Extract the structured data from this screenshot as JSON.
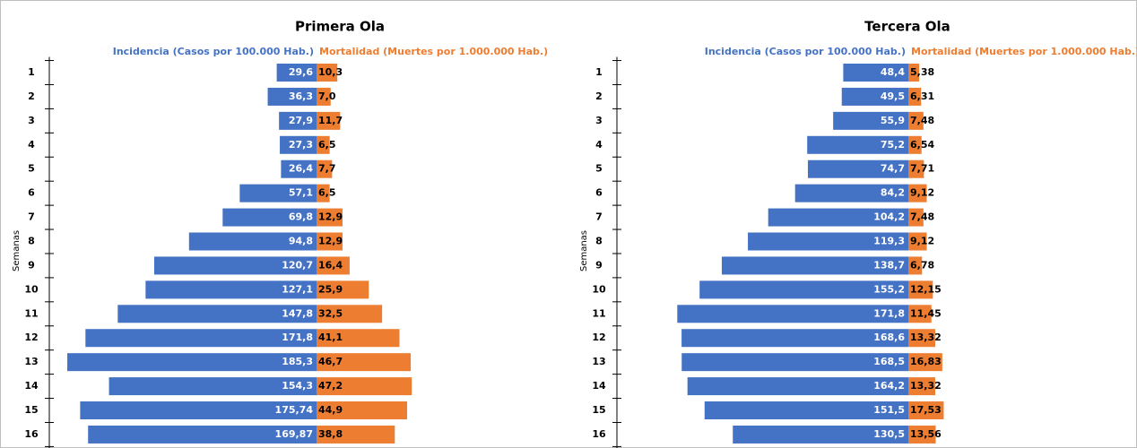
{
  "chart_data": [
    {
      "type": "butterfly",
      "title": "Primera Ola",
      "y_label": "Semanas",
      "categories": [
        "1",
        "2",
        "3",
        "4",
        "5",
        "6",
        "7",
        "8",
        "9",
        "10",
        "11",
        "12",
        "13",
        "14",
        "15",
        "16"
      ],
      "series": [
        {
          "name": "Incidencia (Casos por 100.000 Hab.)",
          "color": "#4472c4",
          "values": [
            29.6,
            36.3,
            27.9,
            27.3,
            26.4,
            57.1,
            69.8,
            94.8,
            120.7,
            127.1,
            147.8,
            171.8,
            185.3,
            154.3,
            175.74,
            169.87
          ],
          "value_labels": [
            "29,6",
            "36,3",
            "27,9",
            "27,3",
            "26,4",
            "57,1",
            "69,8",
            "94,8",
            "120,7",
            "127,1",
            "147,8",
            "171,8",
            "185,3",
            "154,3",
            "175,74",
            "169,87"
          ]
        },
        {
          "name": "Mortalidad (Muertes por 1.000.000 Hab.)",
          "color": "#ed7d31",
          "values": [
            10.3,
            7.0,
            11.7,
            6.5,
            7.7,
            6.5,
            12.9,
            12.9,
            16.4,
            25.9,
            32.5,
            41.1,
            46.7,
            47.2,
            44.9,
            38.8
          ],
          "value_labels": [
            "10,3",
            "7,0",
            "11,7",
            "6,5",
            "7,7",
            "6,5",
            "12,9",
            "12,9",
            "16,4",
            "25,9",
            "32,5",
            "41,1",
            "46,7",
            "47,2",
            "44,9",
            "38,8"
          ]
        }
      ]
    },
    {
      "type": "butterfly",
      "title": "Tercera Ola",
      "y_label": "Semanas",
      "categories": [
        "1",
        "2",
        "3",
        "4",
        "5",
        "6",
        "7",
        "8",
        "9",
        "10",
        "11",
        "12",
        "13",
        "14",
        "15",
        "16"
      ],
      "series": [
        {
          "name": "Incidencia (Casos por 100.000 Hab.)",
          "color": "#4472c4",
          "values": [
            48.4,
            49.5,
            55.9,
            75.2,
            74.7,
            84.2,
            104.2,
            119.3,
            138.7,
            155.2,
            171.8,
            168.6,
            168.5,
            164.2,
            151.5,
            130.5
          ],
          "value_labels": [
            "48,4",
            "49,5",
            "55,9",
            "75,2",
            "74,7",
            "84,2",
            "104,2",
            "119,3",
            "138,7",
            "155,2",
            "171,8",
            "168,6",
            "168,5",
            "164,2",
            "151,5",
            "130,5"
          ]
        },
        {
          "name": "Mortalidad (Muertes por 1.000.000 Hab.)",
          "color": "#ed7d31",
          "values": [
            5.38,
            6.31,
            7.48,
            6.54,
            7.71,
            9.12,
            7.48,
            9.12,
            6.78,
            12.15,
            11.45,
            13.32,
            16.83,
            13.32,
            17.53,
            13.56
          ],
          "value_labels": [
            "5,38",
            "6,31",
            "7,48",
            "6,54",
            "7,71",
            "9,12",
            "7,48",
            "9,12",
            "6,78",
            "12,15",
            "11,45",
            "13,32",
            "16,83",
            "13,32",
            "17,53",
            "13,56"
          ]
        }
      ]
    }
  ]
}
